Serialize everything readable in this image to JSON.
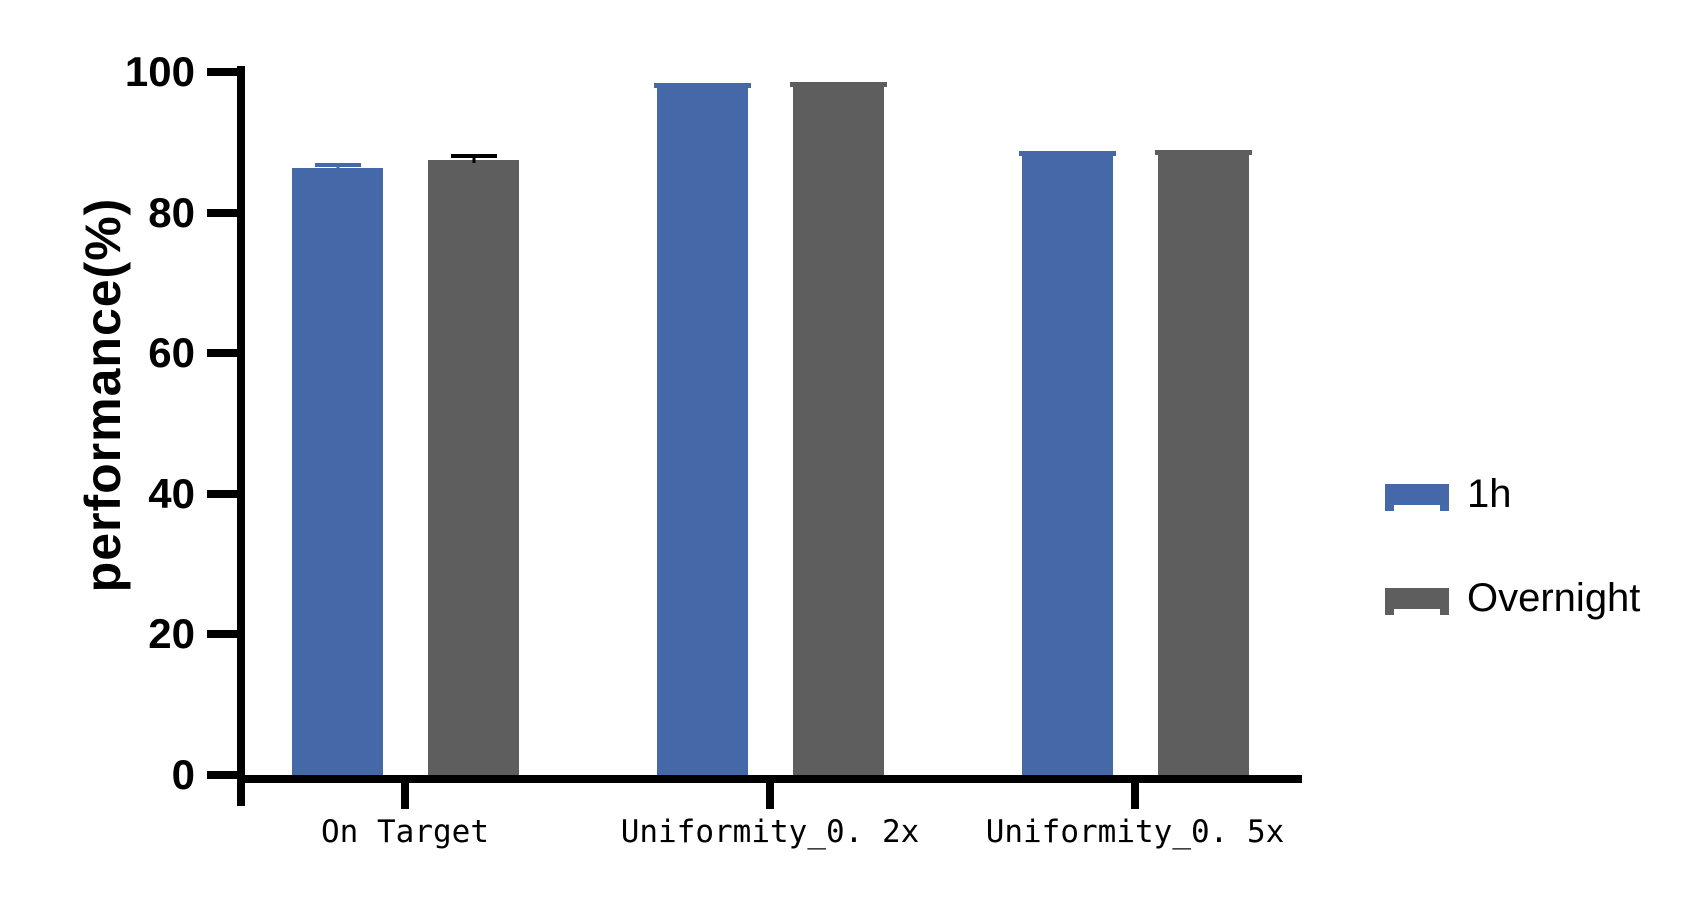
{
  "chart_data": {
    "type": "bar",
    "title": "",
    "xlabel": "",
    "ylabel": "performance(%)",
    "categories": [
      "On Target",
      "Uniformity_0. 2x",
      "Uniformity_0. 5x"
    ],
    "series": [
      {
        "name": "1h",
        "color": "#4468A8",
        "error_color": "#4468A8",
        "values": [
          86.3,
          98.5,
          88.7
        ],
        "errors": [
          0.7,
          0.15,
          0.15
        ]
      },
      {
        "name": "Overnight",
        "color": "#5E5E5E",
        "error_color": "#000000",
        "values": [
          87.5,
          98.6,
          88.9
        ],
        "errors": [
          0.8,
          0.15,
          0.15
        ]
      }
    ],
    "ylim": [
      0,
      100
    ],
    "yticks": [
      0,
      20,
      40,
      60,
      80,
      100
    ],
    "grid": false,
    "legend_position": "right",
    "axis_color": "#000000"
  }
}
